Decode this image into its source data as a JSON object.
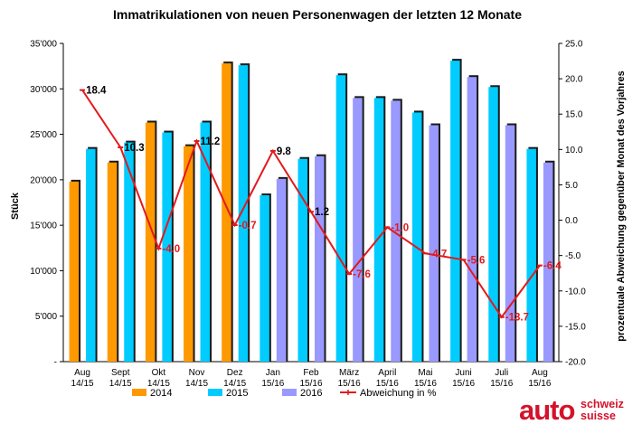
{
  "chart_data": {
    "type": "bar",
    "title": "Immatrikulationen von neuen Personenwagen der letzten 12 Monate",
    "ylabel": "Stück",
    "y2label": "prozentuale Abweichung gegenüber Monat des Vorjahres",
    "ylim": [
      0,
      35000
    ],
    "y2lim": [
      -20,
      25
    ],
    "y_ticks": [
      "-",
      "5'000",
      "10'000",
      "15'000",
      "20'000",
      "25'000",
      "30'000",
      "35'000"
    ],
    "y2_ticks": [
      "-20.0",
      "-15.0",
      "-10.0",
      "-5.0",
      "0.0",
      "5.0",
      "10.0",
      "15.0",
      "20.0",
      "25.0"
    ],
    "categories": [
      [
        "Aug",
        "14/15"
      ],
      [
        "Sept",
        "14/15"
      ],
      [
        "Okt",
        "14/15"
      ],
      [
        "Nov",
        "14/15"
      ],
      [
        "Dez",
        "14/15"
      ],
      [
        "Jan",
        "15/16"
      ],
      [
        "Feb",
        "15/16"
      ],
      [
        "März",
        "15/16"
      ],
      [
        "April",
        "15/16"
      ],
      [
        "Mai",
        "15/16"
      ],
      [
        "Juni",
        "15/16"
      ],
      [
        "Juli",
        "15/16"
      ],
      [
        "Aug",
        "15/16"
      ]
    ],
    "series": [
      {
        "name": "2014",
        "color": "#ff9900",
        "values": [
          19800,
          21900,
          26300,
          23700,
          32800,
          null,
          null,
          null,
          null,
          null,
          null,
          null,
          null
        ]
      },
      {
        "name": "2015",
        "color": "#00ccff",
        "values": [
          23400,
          24100,
          25200,
          26300,
          32600,
          18300,
          22300,
          31500,
          29000,
          27400,
          33100,
          30200,
          23400
        ]
      },
      {
        "name": "2016",
        "color": "#9999ff",
        "values": [
          null,
          null,
          null,
          null,
          null,
          20100,
          22600,
          29000,
          28700,
          26000,
          31300,
          26000,
          21900
        ]
      }
    ],
    "line": {
      "name": "Abweichung in %",
      "color": "#e3191c",
      "values": [
        18.4,
        10.3,
        -4.0,
        11.2,
        -0.7,
        9.8,
        1.2,
        -7.6,
        -1.0,
        -4.7,
        -5.6,
        -13.7,
        -6.4
      ],
      "labels": [
        "18.4",
        "10.3",
        "-4.0",
        "11.2",
        "-0.7",
        "9.8",
        "1.2",
        "-7.6",
        "-1.0",
        "-4.7",
        "-5.6",
        "-13.7",
        "-6.4"
      ],
      "label_colors": [
        "#000000",
        "#000000",
        "#e3191c",
        "#000000",
        "#e3191c",
        "#000000",
        "#000000",
        "#e3191c",
        "#e3191c",
        "#e3191c",
        "#e3191c",
        "#e3191c",
        "#e3191c"
      ]
    },
    "legend": [
      "2014",
      "2015",
      "2016",
      "Abweichung in %"
    ],
    "legend_position": "bottom",
    "grid": false
  },
  "logo": {
    "word": "auto",
    "line1": "schweiz",
    "line2": "suisse"
  }
}
